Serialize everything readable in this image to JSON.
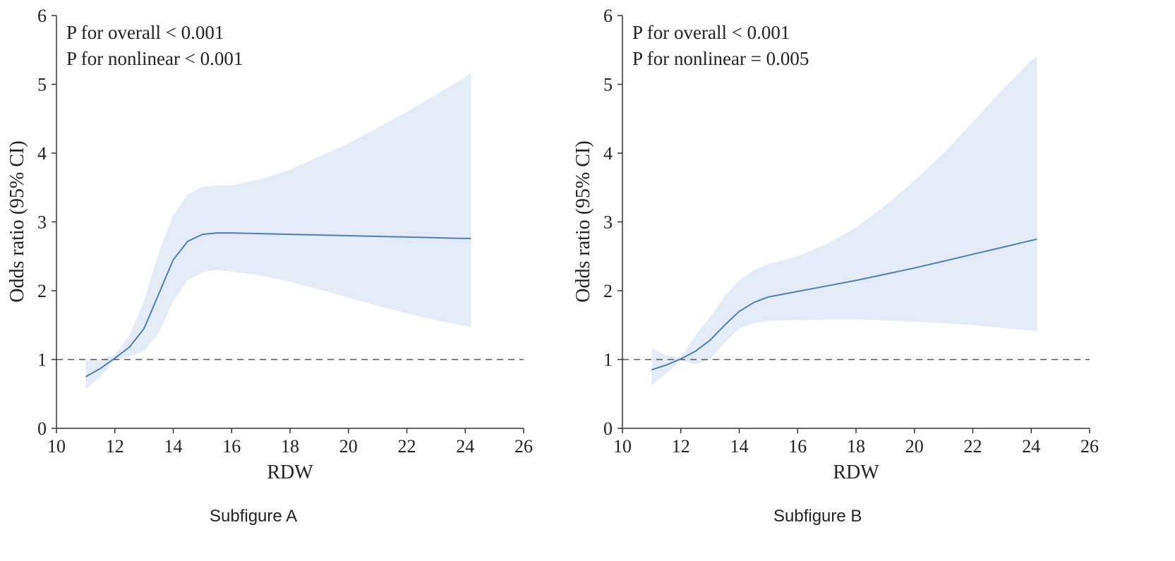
{
  "colors": {
    "line": "#4f7fb0",
    "band": "#e3ecf6",
    "axis": "#333333",
    "reference": "#555555"
  },
  "chart_data": [
    {
      "type": "line",
      "panel": "A",
      "caption": "Subfigure A",
      "xlabel": "RDW",
      "ylabel": "Odds ratio (95% CI)",
      "xlim": [
        10,
        26
      ],
      "ylim": [
        0,
        6
      ],
      "xticks": [
        "10",
        "12",
        "14",
        "16",
        "18",
        "20",
        "22",
        "24",
        "26"
      ],
      "yticks": [
        "0",
        "1",
        "2",
        "3",
        "4",
        "5",
        "6"
      ],
      "annotations": [
        "P for overall < 0.001",
        "P for nonlinear < 0.001"
      ],
      "reference_y": 1,
      "x": [
        11.0,
        11.5,
        12.0,
        12.5,
        13.0,
        13.5,
        14.0,
        14.5,
        15.0,
        15.5,
        16.0,
        17.0,
        18.0,
        19.0,
        20.0,
        21.0,
        22.0,
        23.0,
        24.0,
        24.2
      ],
      "y": [
        0.75,
        0.87,
        1.02,
        1.18,
        1.45,
        1.95,
        2.45,
        2.72,
        2.82,
        2.84,
        2.84,
        2.83,
        2.82,
        2.81,
        2.8,
        2.79,
        2.78,
        2.77,
        2.76,
        2.76
      ],
      "lower": [
        0.56,
        0.75,
        0.98,
        1.05,
        1.12,
        1.38,
        1.85,
        2.15,
        2.27,
        2.3,
        2.28,
        2.22,
        2.13,
        2.02,
        1.9,
        1.78,
        1.67,
        1.57,
        1.49,
        1.47
      ],
      "upper": [
        0.98,
        1.01,
        1.07,
        1.35,
        1.85,
        2.55,
        3.1,
        3.4,
        3.51,
        3.53,
        3.53,
        3.62,
        3.76,
        3.95,
        4.14,
        4.37,
        4.6,
        4.85,
        5.1,
        5.17
      ]
    },
    {
      "type": "line",
      "panel": "B",
      "caption": "Subfigure B",
      "xlabel": "RDW",
      "ylabel": "Odds ratio (95% CI)",
      "xlim": [
        10,
        26
      ],
      "ylim": [
        0,
        6
      ],
      "xticks": [
        "10",
        "12",
        "14",
        "16",
        "18",
        "20",
        "22",
        "24",
        "26"
      ],
      "yticks": [
        "0",
        "1",
        "2",
        "3",
        "4",
        "5",
        "6"
      ],
      "annotations": [
        "P for overall < 0.001",
        "P for nonlinear = 0.005"
      ],
      "reference_y": 1,
      "x": [
        11.0,
        11.5,
        12.0,
        12.5,
        13.0,
        13.5,
        14.0,
        14.5,
        15.0,
        15.5,
        16.0,
        17.0,
        18.0,
        19.0,
        20.0,
        21.0,
        22.0,
        23.0,
        24.0,
        24.2
      ],
      "y": [
        0.85,
        0.92,
        1.01,
        1.12,
        1.28,
        1.5,
        1.7,
        1.83,
        1.91,
        1.95,
        1.99,
        2.07,
        2.15,
        2.24,
        2.33,
        2.43,
        2.53,
        2.63,
        2.73,
        2.75
      ],
      "lower": [
        0.62,
        0.8,
        0.99,
        0.93,
        1.0,
        1.25,
        1.45,
        1.53,
        1.56,
        1.57,
        1.57,
        1.58,
        1.58,
        1.57,
        1.55,
        1.53,
        1.5,
        1.46,
        1.42,
        1.41
      ],
      "upper": [
        1.17,
        1.06,
        1.03,
        1.35,
        1.62,
        1.92,
        2.15,
        2.3,
        2.39,
        2.44,
        2.5,
        2.68,
        2.92,
        3.24,
        3.6,
        4.0,
        4.45,
        4.92,
        5.35,
        5.4
      ]
    }
  ]
}
